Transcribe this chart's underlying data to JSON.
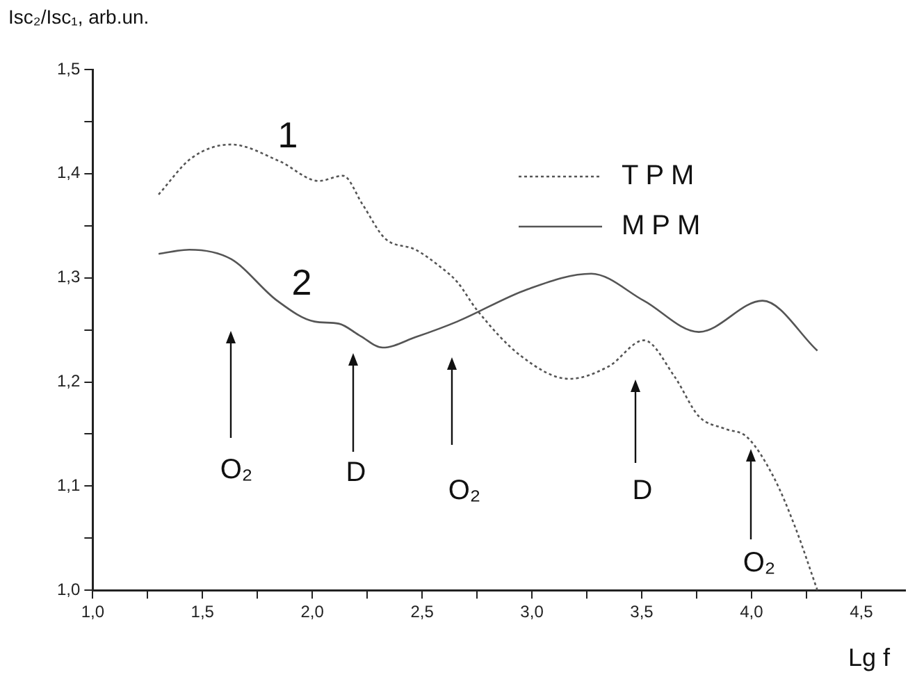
{
  "chart_data": {
    "type": "line",
    "ylabel": "Isc₂/Isc₁, arb.un.",
    "xlabel": "Lg f",
    "xlim": [
      1,
      4.7
    ],
    "ylim": [
      1,
      1.5
    ],
    "xticks": [
      {
        "value": 1,
        "label": "1,0"
      },
      {
        "value": 1.25,
        "label": null
      },
      {
        "value": 1.5,
        "label": "1,5"
      },
      {
        "value": 1.75,
        "label": null
      },
      {
        "value": 2,
        "label": "2,0"
      },
      {
        "value": 2.25,
        "label": null
      },
      {
        "value": 2.5,
        "label": "2,5"
      },
      {
        "value": 2.75,
        "label": null
      },
      {
        "value": 3,
        "label": "3,0"
      },
      {
        "value": 3.25,
        "label": null
      },
      {
        "value": 3.5,
        "label": "3,5"
      },
      {
        "value": 3.75,
        "label": null
      },
      {
        "value": 4,
        "label": "4,0"
      },
      {
        "value": 4.25,
        "label": null
      },
      {
        "value": 4.5,
        "label": "4,5"
      }
    ],
    "yticks": [
      {
        "value": 1,
        "label": "1,0"
      },
      {
        "value": 1.05,
        "label": null
      },
      {
        "value": 1.1,
        "label": "1,1"
      },
      {
        "value": 1.15,
        "label": null
      },
      {
        "value": 1.2,
        "label": "1,2"
      },
      {
        "value": 1.25,
        "label": null
      },
      {
        "value": 1.3,
        "label": "1,3"
      },
      {
        "value": 1.35,
        "label": null
      },
      {
        "value": 1.4,
        "label": "1,4"
      },
      {
        "value": 1.45,
        "label": null
      },
      {
        "value": 1.5,
        "label": "1,5"
      }
    ],
    "series": [
      {
        "name": "TPM",
        "color": "#555555",
        "line_style": "dotted",
        "x": [
          1.3,
          1.45,
          1.63,
          1.85,
          2.03,
          2.14,
          2.23,
          2.33,
          2.47,
          2.58,
          2.66,
          2.75,
          2.95,
          3.17,
          3.35,
          3.51,
          3.65,
          3.76,
          3.88,
          3.98,
          4.1,
          4.2,
          4.3
        ],
        "values": [
          1.38,
          1.415,
          1.428,
          1.412,
          1.393,
          1.398,
          1.37,
          1.338,
          1.327,
          1.311,
          1.296,
          1.269,
          1.225,
          1.203,
          1.215,
          1.24,
          1.205,
          1.167,
          1.155,
          1.147,
          1.109,
          1.06,
          1.0
        ]
      },
      {
        "name": "MPM",
        "color": "#555555",
        "line_style": "solid",
        "x": [
          1.3,
          1.44,
          1.63,
          1.84,
          2.01,
          2.12,
          2.22,
          2.32,
          2.47,
          2.66,
          2.98,
          3.27,
          3.51,
          3.76,
          4.05,
          4.3
        ],
        "values": [
          1.323,
          1.327,
          1.318,
          1.278,
          1.258,
          1.256,
          1.244,
          1.233,
          1.243,
          1.258,
          1.289,
          1.304,
          1.278,
          1.248,
          1.278,
          1.23
        ]
      }
    ],
    "legend": "top right",
    "grid": false,
    "annotations": [
      "1",
      "2",
      "O₂",
      "D",
      "O₂",
      "D",
      "O₂"
    ]
  }
}
